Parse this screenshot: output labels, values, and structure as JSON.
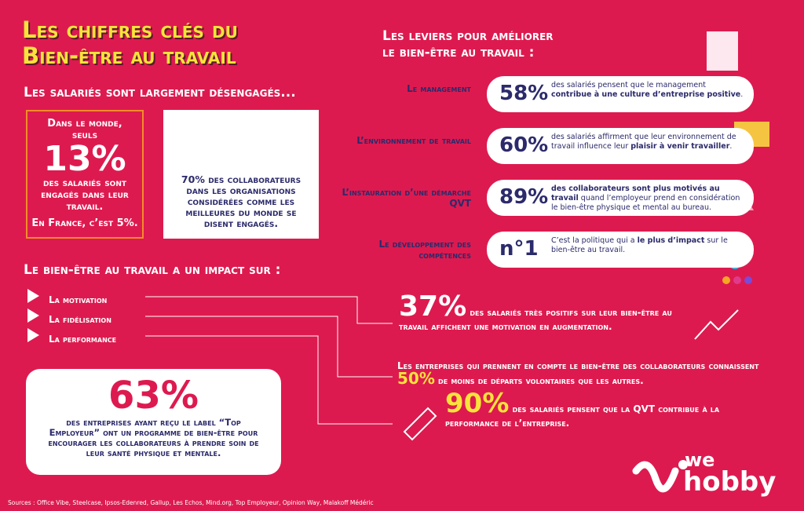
{
  "header": {
    "title_lines": [
      "Les chiffres clés du",
      "Bien-être au travail"
    ]
  },
  "engagement": {
    "heading": "Les salariés sont largement désengagés...",
    "box1": {
      "intro": "Dans le monde, seuls",
      "stat": "13%",
      "text": "des salariés sont engagés dans leur travail.",
      "france": "En France, c’est 5%."
    },
    "box2": {
      "stat": "70%",
      "text": "des collaborateurs dans les organisations considérées comme les meilleures du monde se disent engagés."
    }
  },
  "levers": {
    "title_lines": [
      "Les leviers pour améliorer",
      "le bien-être au travail :"
    ],
    "items": [
      {
        "label": "Le management",
        "stat": "58%",
        "segments": [
          {
            "text": "des salariés pensent que le management ",
            "bold": false
          },
          {
            "text": "contribue à une culture d’entreprise positive",
            "bold": true
          },
          {
            "text": ".",
            "bold": false
          }
        ]
      },
      {
        "label": "L’environnement de travail",
        "stat": "60%",
        "segments": [
          {
            "text": "des salariés affirment que leur environnement de travail influence leur ",
            "bold": false
          },
          {
            "text": "plaisir à venir travailler",
            "bold": true
          },
          {
            "text": ".",
            "bold": false
          }
        ]
      },
      {
        "label": "L’instauration d’une démarche QVT",
        "stat": "89%",
        "segments": [
          {
            "text": "des collaborateurs sont plus motivés au travail",
            "bold": true
          },
          {
            "text": " quand l’employeur prend en considération le bien-être physique et mental au bureau.",
            "bold": false
          }
        ]
      },
      {
        "label": "Le développement des compétences",
        "stat": "n°1",
        "segments": [
          {
            "text": "C’est la politique qui a ",
            "bold": false
          },
          {
            "text": "le plus d’impact",
            "bold": true
          },
          {
            "text": " sur le bien-être au travail.",
            "bold": false
          }
        ]
      }
    ]
  },
  "impact": {
    "heading": "Le bien-être au travail a un impact sur :",
    "items": [
      "La motivation",
      "La fidélisation",
      "La performance"
    ]
  },
  "box63": {
    "stat": "63%",
    "segments": [
      {
        "text": "des entreprises ayant reçu le label “Top Employeur” ",
        "bold": false
      },
      {
        "text": "ont un programme de bien-être",
        "bold": true
      },
      {
        "text": " pour encourager les collaborateurs à prendre soin de leur santé physique et mentale.",
        "bold": false
      }
    ]
  },
  "results": [
    {
      "stat": "37%",
      "segments": [
        {
          "text": " des salariés très positifs sur leur bien-être au travail affichent une ",
          "bold": false
        },
        {
          "text": "motivation en augmentation.",
          "bold": true
        }
      ]
    },
    {
      "before": "Les entreprises qui prennent en compte le bien-être des collaborateurs connaissent ",
      "stat": "50%",
      "segments": [
        {
          "text": " de moins de départs volontaires",
          "bold": true
        },
        {
          "text": " que les autres.",
          "bold": false
        }
      ]
    },
    {
      "stat": "90%",
      "segments": [
        {
          "text": " des salariés pensent que ",
          "bold": false
        },
        {
          "text": "la QVT contribue à la performance de l’entreprise.",
          "bold": true
        }
      ]
    }
  ],
  "footer": {
    "sources": "Sources : Office Vibe, Steelcase, Ipsos-Edenred, Gallup, Les Echos, Mind.org, Top Employeur, Opinion Way, Malakoff Médéric",
    "logo_top": "we",
    "logo_bottom": "hobby"
  }
}
